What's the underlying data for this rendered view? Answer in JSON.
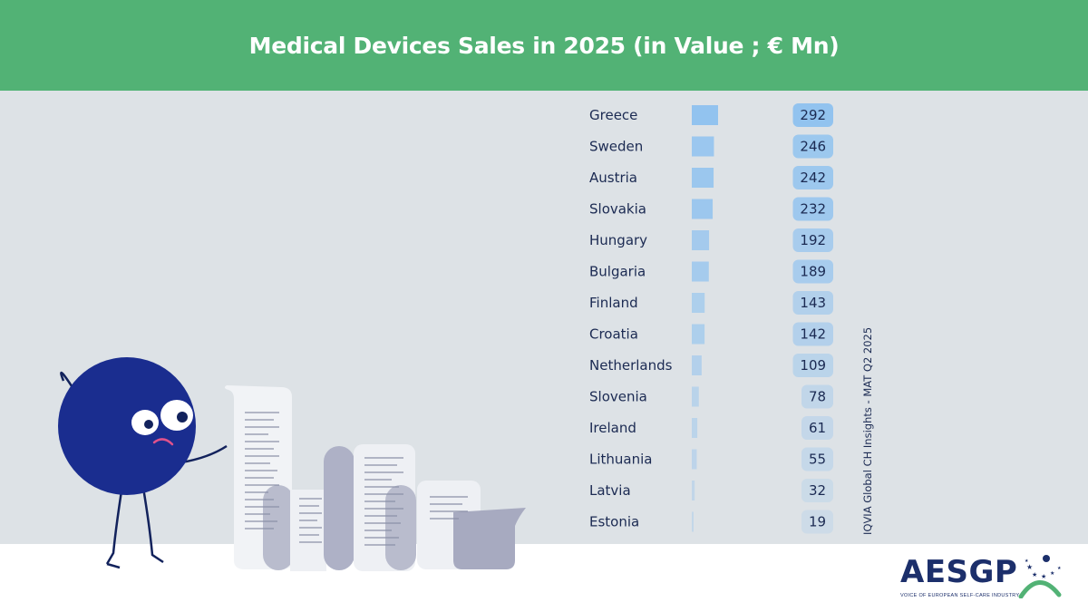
{
  "header": {
    "title": "Medical Devices Sales in 2025 (in Value ; € Mn)"
  },
  "source_note": "IQVIA Global CH Insights - MAT Q2 2025",
  "logo": {
    "name": "AESGP",
    "tagline": "VOICE OF EUROPEAN SELF-CARE INDUSTRY"
  },
  "colors": {
    "header_bg": "#52b275",
    "panel_bg": "#dde2e6",
    "bar": "#92c3ef",
    "text": "#1b2a52"
  },
  "chart_data": {
    "type": "bar",
    "orientation": "horizontal",
    "title": "Medical Devices Sales in 2025 (in Value ; € Mn)",
    "categories": [
      "Greece",
      "Sweden",
      "Austria",
      "Slovakia",
      "Hungary",
      "Bulgaria",
      "Finland",
      "Croatia",
      "Netherlands",
      "Slovenia",
      "Ireland",
      "Lithuania",
      "Latvia",
      "Estonia"
    ],
    "values": [
      292,
      246,
      242,
      232,
      192,
      189,
      143,
      142,
      109,
      78,
      61,
      55,
      32,
      19
    ],
    "data_labels": true,
    "grid": false,
    "legend": "none",
    "xlim": [
      0,
      292
    ]
  }
}
